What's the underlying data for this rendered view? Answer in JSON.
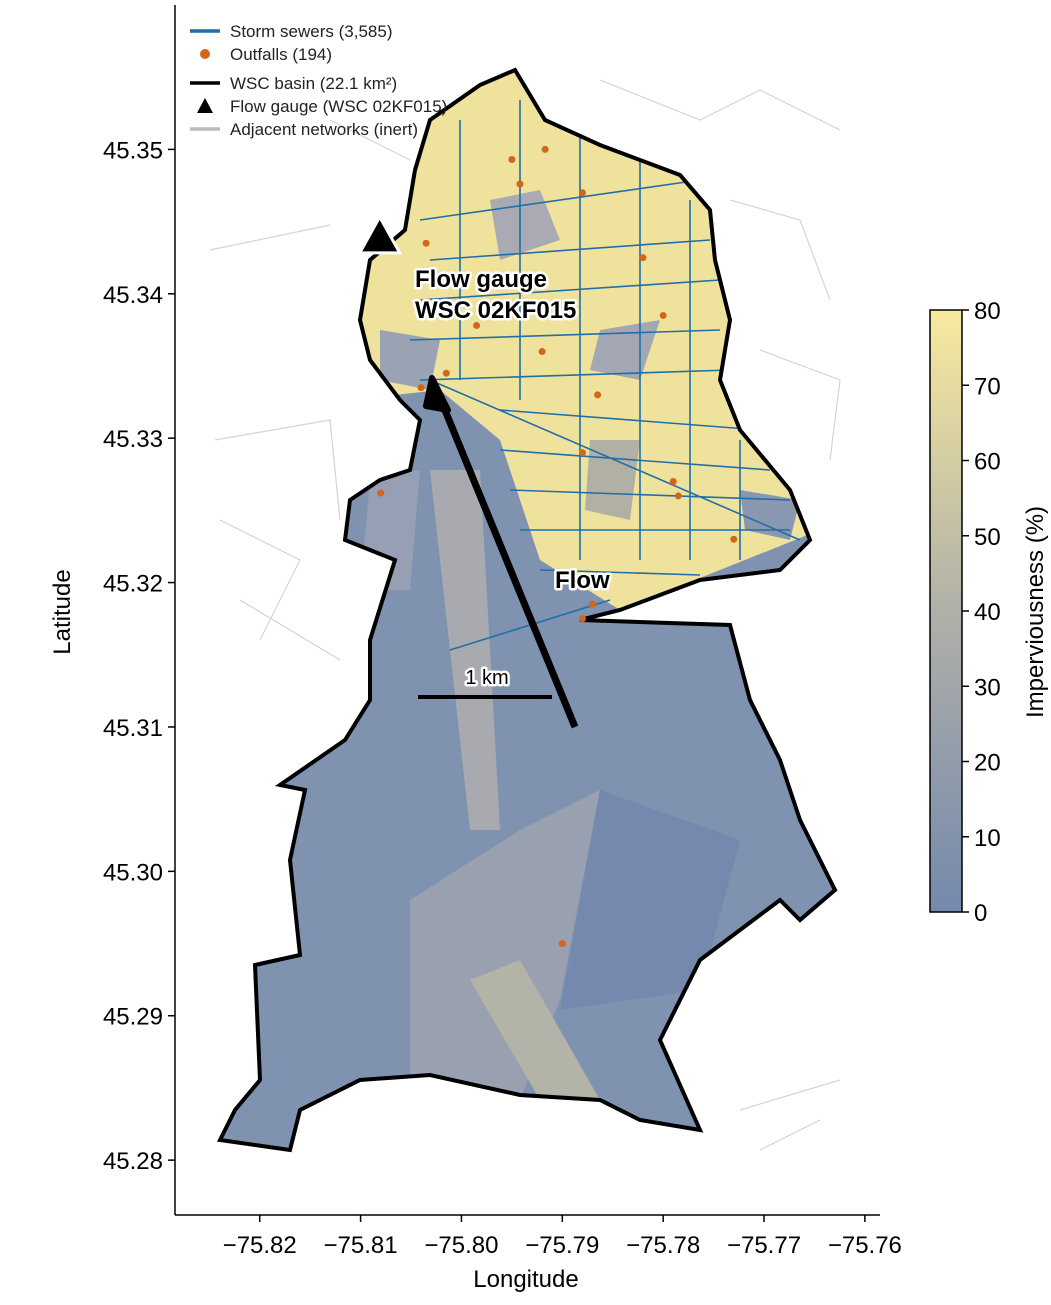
{
  "chart_data": {
    "type": "map",
    "xlabel": "Longitude",
    "ylabel": "Latitude",
    "xlim": [
      -75.8284,
      -75.7585
    ],
    "ylim": [
      45.2762,
      45.36
    ],
    "xticks": [
      {
        "value": -75.82,
        "label": "−75.82"
      },
      {
        "value": -75.81,
        "label": "−75.81"
      },
      {
        "value": -75.8,
        "label": "−75.80"
      },
      {
        "value": -75.79,
        "label": "−75.79"
      },
      {
        "value": -75.78,
        "label": "−75.78"
      },
      {
        "value": -75.77,
        "label": "−75.77"
      },
      {
        "value": -75.76,
        "label": "−75.76"
      }
    ],
    "yticks": [
      45.28,
      45.29,
      {
        "value": 45.3,
        "label": "45.30"
      },
      45.31,
      45.32,
      45.33,
      45.34,
      45.35
    ],
    "series": [
      {
        "name": "Storm sewers (3,585)",
        "color": "#1f6fa8",
        "marker": "line"
      },
      {
        "name": "Outfalls (194)",
        "color": "#d4661a",
        "marker": "circle",
        "x": [
          -75.795,
          -75.7917,
          -75.7942,
          -75.788,
          -75.8035,
          -75.782,
          -75.78,
          -75.8015,
          -75.804,
          -75.7985,
          -75.792,
          -75.788,
          -75.7865,
          -75.779,
          -75.7785,
          -75.773,
          -75.787,
          -75.788,
          -75.79,
          -75.808
        ],
        "y": [
          45.3493,
          45.35,
          45.3476,
          45.347,
          45.3435,
          45.3425,
          45.3385,
          45.3345,
          45.3335,
          45.3378,
          45.336,
          45.329,
          45.333,
          45.327,
          45.326,
          45.323,
          45.3185,
          45.3175,
          45.295,
          45.3262
        ]
      },
      {
        "name": "WSC basin (22.1 km²)",
        "color": "#000000",
        "marker": "line"
      },
      {
        "name": "Flow gauge (WSC 02KF015)",
        "color": "#000000",
        "marker": "triangle",
        "x": [
          -75.8081
        ],
        "y": [
          45.3438
        ]
      },
      {
        "name": "Adjacent networks (inert)",
        "color": "#bbbbbb",
        "marker": "line"
      }
    ],
    "gauge_label": [
      "Flow gauge",
      "WSC 02KF015"
    ],
    "flow_label": "Flow",
    "scale_label": "1 km",
    "colorbar": {
      "label": "Imperviousness (%)",
      "lim": [
        0,
        80
      ],
      "ticks": [
        0,
        10,
        20,
        30,
        40,
        50,
        60,
        70,
        80
      ],
      "colors": [
        "#7489ad",
        "#b0b0a8",
        "#f8ea9e"
      ]
    }
  }
}
